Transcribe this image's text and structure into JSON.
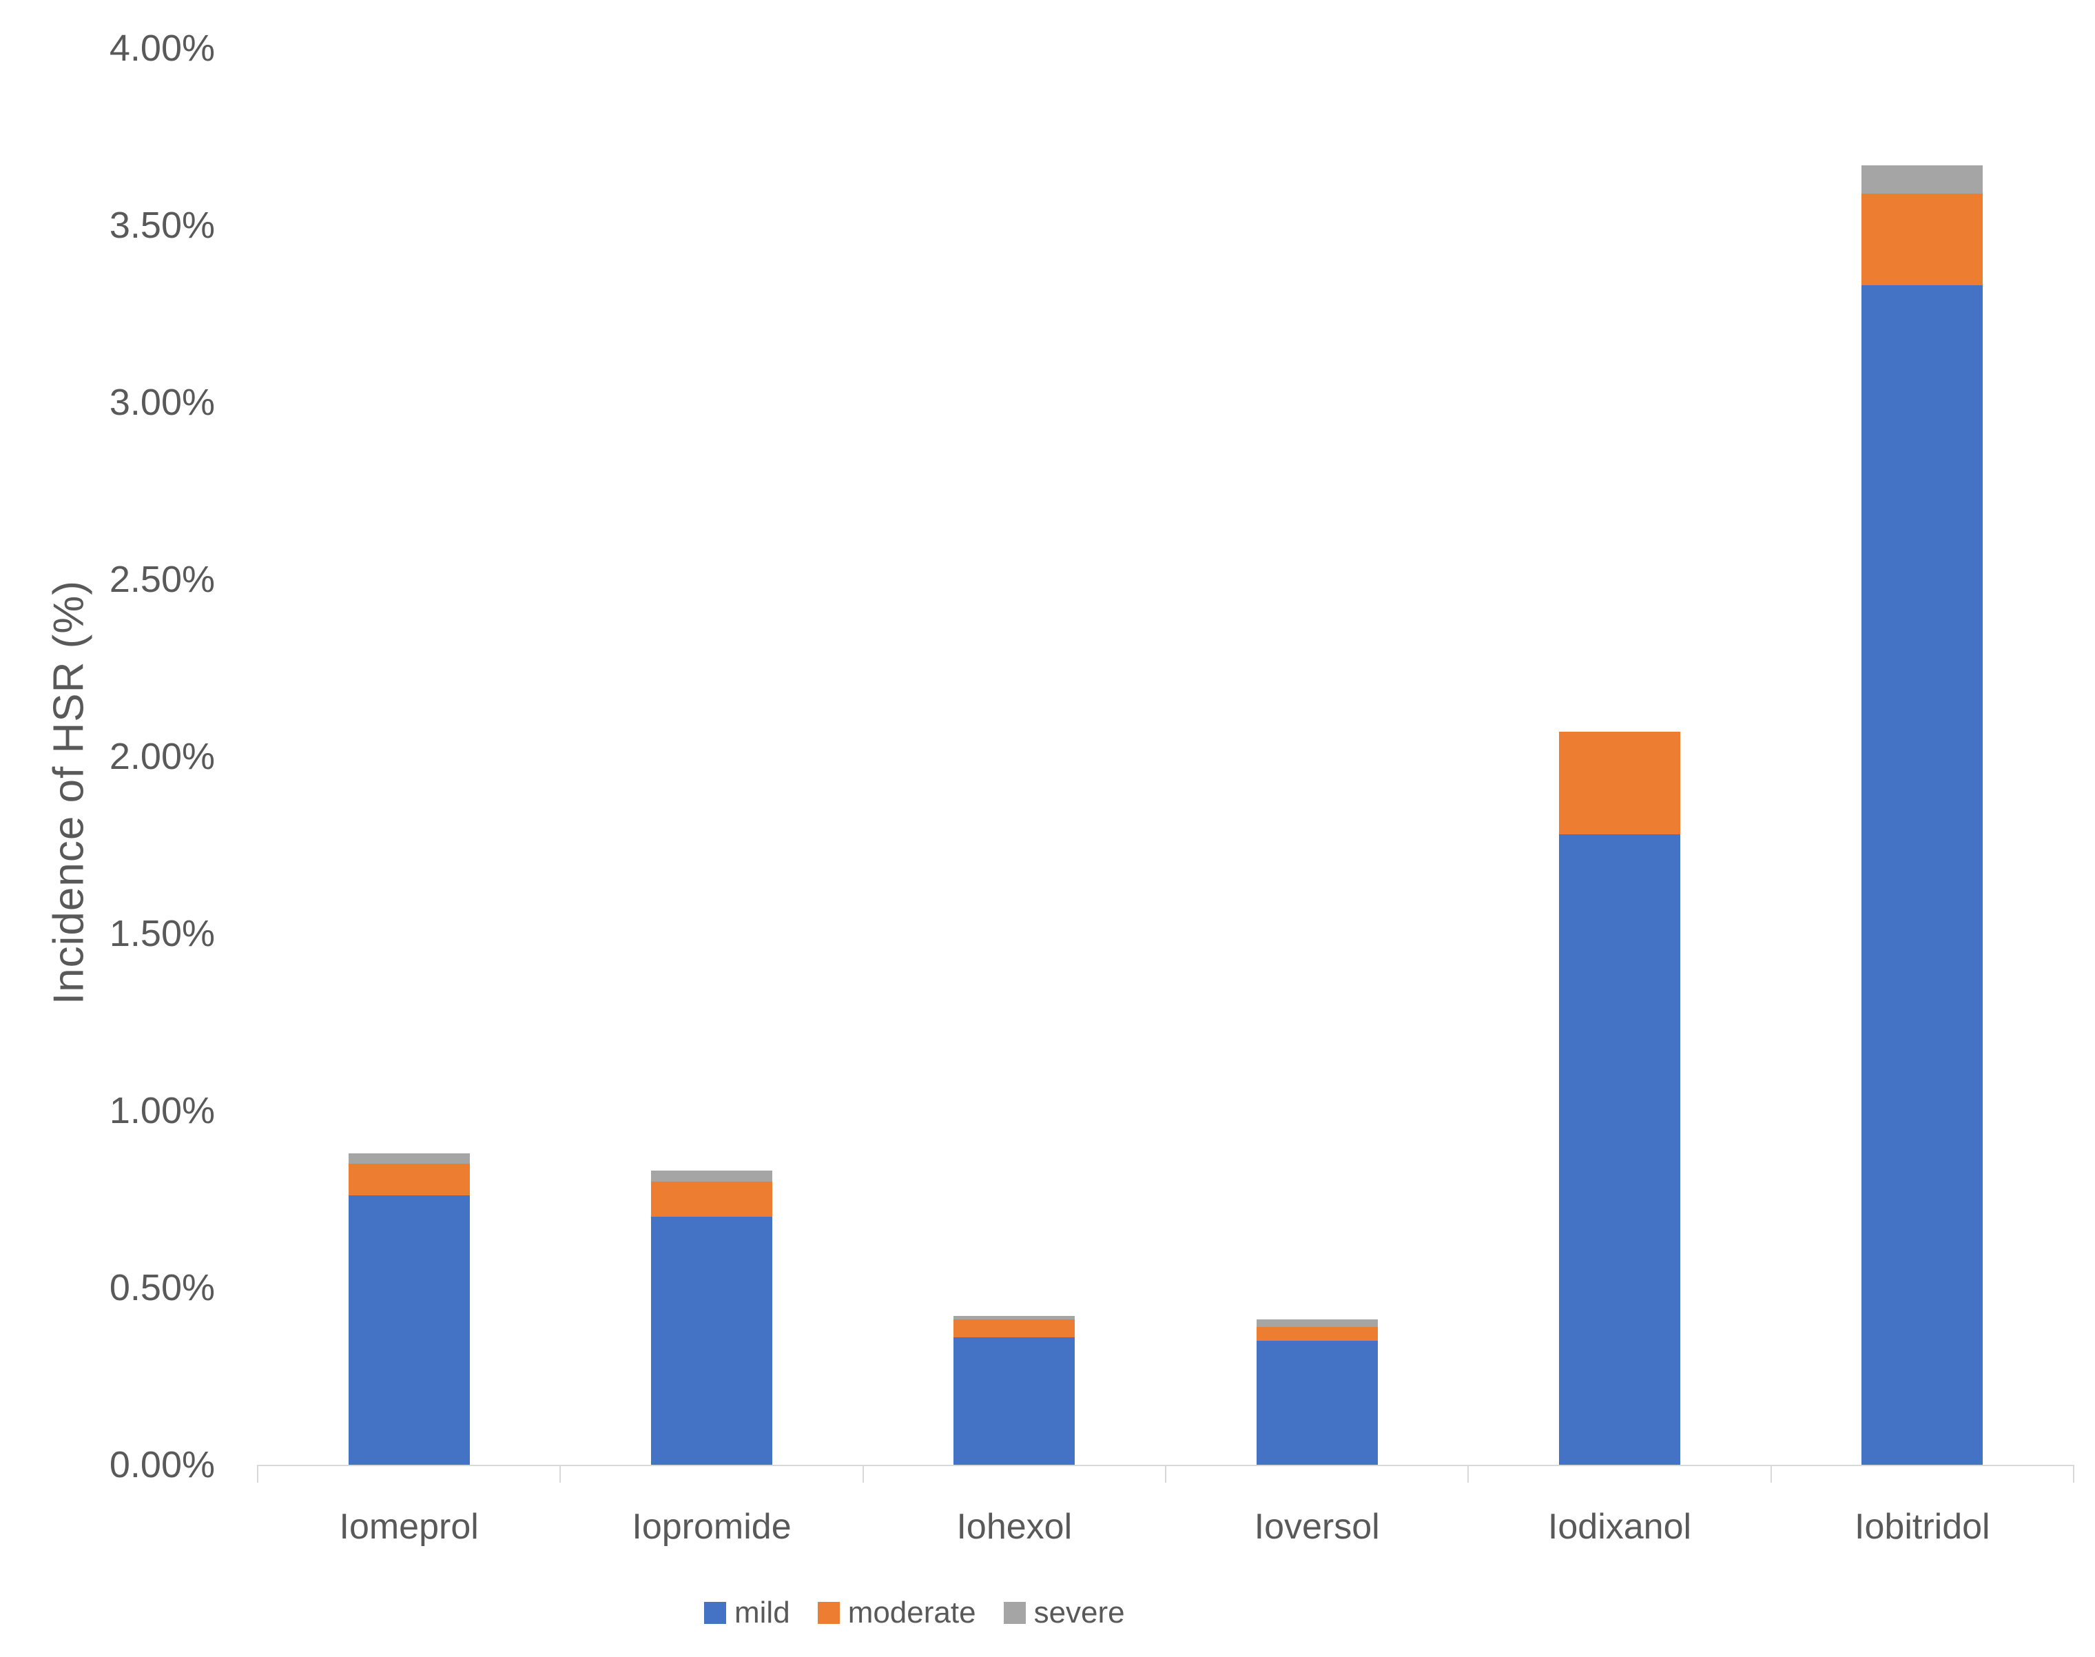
{
  "chart_data": {
    "type": "bar",
    "stacked": true,
    "title": "",
    "xlabel": "",
    "ylabel": "Incidence of HSR (%)",
    "categories": [
      "Iomeprol",
      "Iopromide",
      "Iohexol",
      "Ioversol",
      "Iodixanol",
      "Iobitridol"
    ],
    "series": [
      {
        "name": "mild",
        "color": "#4472C4",
        "values": [
          0.76,
          0.7,
          0.36,
          0.35,
          1.78,
          3.33
        ]
      },
      {
        "name": "moderate",
        "color": "#ED7D31",
        "values": [
          0.09,
          0.1,
          0.05,
          0.04,
          0.29,
          0.26
        ]
      },
      {
        "name": "severe",
        "color": "#A5A5A5",
        "values": [
          0.03,
          0.03,
          0.01,
          0.02,
          0.0,
          0.08
        ]
      }
    ],
    "totals_pct": [
      0.88,
      0.83,
      0.42,
      0.41,
      2.07,
      3.67
    ],
    "y_ticks": [
      "0.00%",
      "0.50%",
      "1.00%",
      "1.50%",
      "2.00%",
      "2.50%",
      "3.00%",
      "3.50%",
      "4.00%"
    ],
    "ylim": [
      0,
      4
    ],
    "grid": false,
    "legend_position": "bottom",
    "legend": [
      "mild",
      "moderate",
      "severe"
    ]
  },
  "colors": {
    "axis_text": "#595959",
    "axis_line": "#d9d9d9",
    "background": "#ffffff",
    "mild": "#4472C4",
    "moderate": "#ED7D31",
    "severe": "#A5A5A5"
  }
}
